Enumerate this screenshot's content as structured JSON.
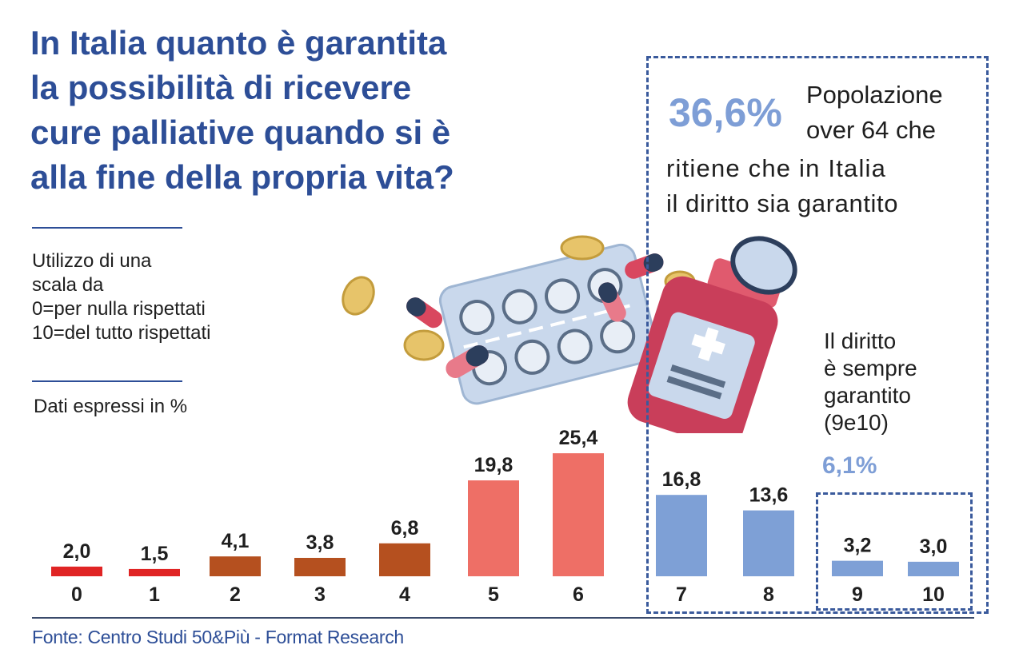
{
  "title": "In Italia quanto è garantita\nla possibilità di ricevere\ncure palliative quando si è\nalla fine della propria vita?",
  "scale_note": "Utilizzo di una\nscala da\n0=per nulla rispettati\n10=del tutto rispettati",
  "unit_note": "Dati espressi in %",
  "highlight": {
    "value": "36,6%",
    "text_line1": "Popolazione",
    "text_line2": "over 64 che",
    "text_line3": "ritiene che in Italia",
    "text_line4": "il diritto sia garantito"
  },
  "always_note": {
    "text": "Il diritto\nè sempre\ngarantito\n(9e10)",
    "value": "6,1%"
  },
  "source": "Fonte: Centro Studi 50&Più - Format Research",
  "colors": {
    "title": "#2d4e97",
    "red": "#e02424",
    "brown": "#b5501f",
    "salmon": "#ee6f66",
    "blue": "#7ea0d6",
    "dash": "#3a5a9c"
  },
  "chart_data": {
    "type": "bar",
    "categories": [
      "0",
      "1",
      "2",
      "3",
      "4",
      "5",
      "6",
      "7",
      "8",
      "9",
      "10"
    ],
    "values": [
      2.0,
      1.5,
      4.1,
      3.8,
      6.8,
      19.8,
      25.4,
      16.8,
      13.6,
      3.2,
      3.0
    ],
    "value_labels": [
      "2,0",
      "1,5",
      "4,1",
      "3,8",
      "6,8",
      "19,8",
      "25,4",
      "16,8",
      "13,6",
      "3,2",
      "3,0"
    ],
    "bar_colors": [
      "#e02424",
      "#e02424",
      "#b5501f",
      "#b5501f",
      "#b5501f",
      "#ee6f66",
      "#ee6f66",
      "#7ea0d6",
      "#7ea0d6",
      "#7ea0d6",
      "#7ea0d6"
    ],
    "xlabel": "",
    "ylabel": "",
    "grid": false,
    "legend": "none"
  }
}
